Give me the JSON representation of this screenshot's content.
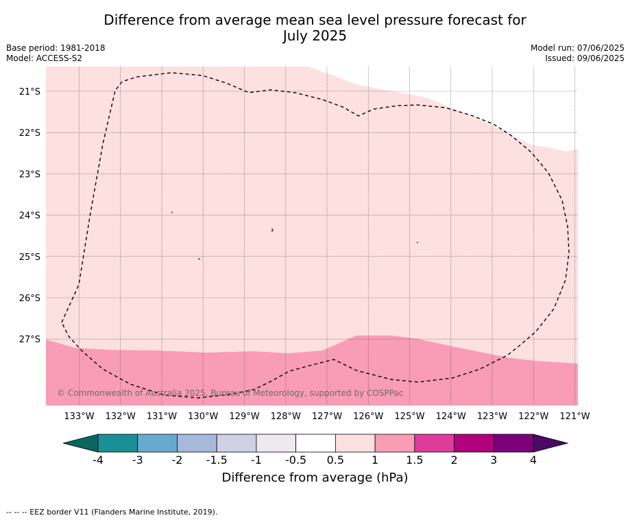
{
  "title_line1": "Difference from average mean sea level pressure forecast for",
  "title_line2": "July 2025",
  "base_period": "Base period: 1981-2018",
  "model": "Model: ACCESS-S2",
  "model_run": "Model run: 07/06/2025",
  "issued": "Issued: 09/06/2025",
  "copyright": "© Commonwealth of Australia 2025, Bureau of Meteorology, supported by COSPPac",
  "lat_labels": [
    "21°S",
    "22°S",
    "23°S",
    "24°S",
    "25°S",
    "26°S",
    "27°S"
  ],
  "lon_labels": [
    "133°W",
    "132°W",
    "131°W",
    "130°W",
    "129°W",
    "128°W",
    "127°W",
    "126°W",
    "125°W",
    "124°W",
    "123°W",
    "122°W",
    "121°W"
  ],
  "colorbar": {
    "label": "Difference from average (hPa)",
    "ticks": [
      "-4",
      "-3",
      "-2",
      "-1.5",
      "-1",
      "-0.5",
      "0.5",
      "1",
      "1.5",
      "2",
      "3",
      "4"
    ],
    "colors": [
      "#1b8f96",
      "#69a9d0",
      "#a6b9da",
      "#cfd0e6",
      "#eee8ef",
      "#ffffff",
      "#fde0e0",
      "#f89db5",
      "#df3b9a",
      "#b3007c",
      "#7c007a"
    ],
    "extend_low_color": "#0b6660",
    "extend_high_color": "#4a0a62"
  },
  "footnote": "--  --  -- EEZ border V11 (Flanders Marine Institute, 2019)."
}
